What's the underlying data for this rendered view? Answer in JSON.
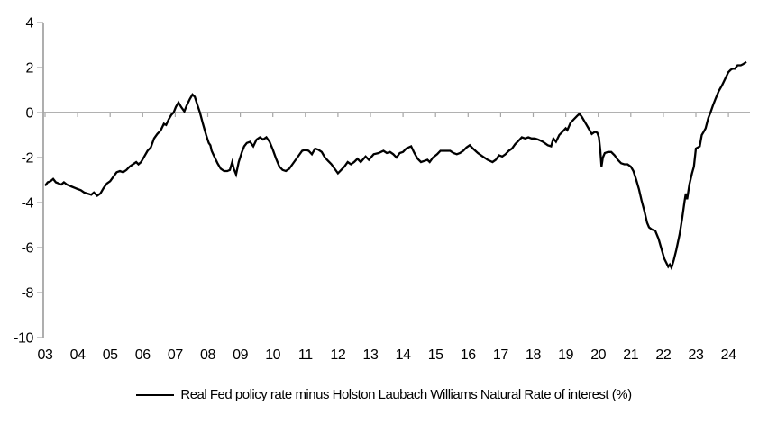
{
  "chart_data": {
    "type": "line",
    "title": "",
    "xlabel": "",
    "ylabel": "",
    "ylim": [
      -10,
      4
    ],
    "y_ticks": [
      4,
      2,
      0,
      -2,
      -4,
      -6,
      -8,
      -10
    ],
    "x_tick_labels": [
      "03",
      "04",
      "05",
      "06",
      "07",
      "08",
      "09",
      "10",
      "11",
      "12",
      "13",
      "14",
      "15",
      "16",
      "17",
      "18",
      "19",
      "20",
      "21",
      "22",
      "23",
      "24"
    ],
    "x_start_year": 3,
    "grid": "zero-line-only",
    "legend_position": "bottom",
    "axis_color": "#a6a6a6",
    "background_color": "#ffffff",
    "series": [
      {
        "name": "Real Fed policy rate minus Holston Laubach Williams Natural Rate of interest (%)",
        "color": "#000000",
        "points": [
          [
            3.0,
            -3.25
          ],
          [
            3.08,
            -3.1
          ],
          [
            3.17,
            -3.05
          ],
          [
            3.25,
            -2.95
          ],
          [
            3.33,
            -3.1
          ],
          [
            3.42,
            -3.15
          ],
          [
            3.5,
            -3.2
          ],
          [
            3.58,
            -3.1
          ],
          [
            3.67,
            -3.2
          ],
          [
            3.75,
            -3.25
          ],
          [
            3.83,
            -3.3
          ],
          [
            3.92,
            -3.35
          ],
          [
            4.0,
            -3.4
          ],
          [
            4.1,
            -3.45
          ],
          [
            4.2,
            -3.55
          ],
          [
            4.3,
            -3.6
          ],
          [
            4.42,
            -3.65
          ],
          [
            4.5,
            -3.55
          ],
          [
            4.6,
            -3.7
          ],
          [
            4.7,
            -3.6
          ],
          [
            4.8,
            -3.35
          ],
          [
            4.9,
            -3.15
          ],
          [
            5.0,
            -3.05
          ],
          [
            5.1,
            -2.85
          ],
          [
            5.2,
            -2.65
          ],
          [
            5.3,
            -2.6
          ],
          [
            5.4,
            -2.65
          ],
          [
            5.5,
            -2.55
          ],
          [
            5.6,
            -2.4
          ],
          [
            5.7,
            -2.3
          ],
          [
            5.8,
            -2.2
          ],
          [
            5.87,
            -2.3
          ],
          [
            5.95,
            -2.2
          ],
          [
            6.05,
            -1.95
          ],
          [
            6.15,
            -1.7
          ],
          [
            6.25,
            -1.55
          ],
          [
            6.35,
            -1.15
          ],
          [
            6.45,
            -0.95
          ],
          [
            6.55,
            -0.8
          ],
          [
            6.65,
            -0.5
          ],
          [
            6.72,
            -0.55
          ],
          [
            6.8,
            -0.3
          ],
          [
            6.88,
            -0.1
          ],
          [
            6.95,
            0.0
          ],
          [
            7.02,
            0.25
          ],
          [
            7.1,
            0.45
          ],
          [
            7.18,
            0.25
          ],
          [
            7.28,
            0.05
          ],
          [
            7.35,
            0.3
          ],
          [
            7.45,
            0.6
          ],
          [
            7.53,
            0.8
          ],
          [
            7.6,
            0.7
          ],
          [
            7.68,
            0.35
          ],
          [
            7.76,
            0.0
          ],
          [
            7.85,
            -0.5
          ],
          [
            7.95,
            -1.0
          ],
          [
            8.03,
            -1.35
          ],
          [
            8.08,
            -1.45
          ],
          [
            8.12,
            -1.7
          ],
          [
            8.2,
            -1.95
          ],
          [
            8.3,
            -2.25
          ],
          [
            8.4,
            -2.5
          ],
          [
            8.5,
            -2.6
          ],
          [
            8.6,
            -2.6
          ],
          [
            8.68,
            -2.55
          ],
          [
            8.75,
            -2.2
          ],
          [
            8.8,
            -2.5
          ],
          [
            8.87,
            -2.75
          ],
          [
            8.95,
            -2.2
          ],
          [
            9.05,
            -1.75
          ],
          [
            9.12,
            -1.5
          ],
          [
            9.2,
            -1.35
          ],
          [
            9.3,
            -1.3
          ],
          [
            9.4,
            -1.5
          ],
          [
            9.5,
            -1.2
          ],
          [
            9.6,
            -1.1
          ],
          [
            9.7,
            -1.2
          ],
          [
            9.8,
            -1.1
          ],
          [
            9.9,
            -1.3
          ],
          [
            10.0,
            -1.65
          ],
          [
            10.1,
            -2.05
          ],
          [
            10.2,
            -2.4
          ],
          [
            10.3,
            -2.55
          ],
          [
            10.4,
            -2.6
          ],
          [
            10.5,
            -2.5
          ],
          [
            10.6,
            -2.3
          ],
          [
            10.7,
            -2.1
          ],
          [
            10.8,
            -1.9
          ],
          [
            10.9,
            -1.7
          ],
          [
            11.0,
            -1.65
          ],
          [
            11.1,
            -1.7
          ],
          [
            11.2,
            -1.85
          ],
          [
            11.3,
            -1.6
          ],
          [
            11.4,
            -1.65
          ],
          [
            11.5,
            -1.75
          ],
          [
            11.6,
            -2.0
          ],
          [
            11.7,
            -2.15
          ],
          [
            11.8,
            -2.3
          ],
          [
            11.9,
            -2.5
          ],
          [
            12.0,
            -2.7
          ],
          [
            12.1,
            -2.55
          ],
          [
            12.2,
            -2.4
          ],
          [
            12.3,
            -2.2
          ],
          [
            12.4,
            -2.3
          ],
          [
            12.5,
            -2.2
          ],
          [
            12.6,
            -2.05
          ],
          [
            12.7,
            -2.2
          ],
          [
            12.85,
            -1.95
          ],
          [
            12.95,
            -2.1
          ],
          [
            13.1,
            -1.85
          ],
          [
            13.25,
            -1.8
          ],
          [
            13.4,
            -1.7
          ],
          [
            13.5,
            -1.8
          ],
          [
            13.6,
            -1.75
          ],
          [
            13.7,
            -1.85
          ],
          [
            13.8,
            -2.0
          ],
          [
            13.9,
            -1.8
          ],
          [
            14.0,
            -1.75
          ],
          [
            14.1,
            -1.6
          ],
          [
            14.25,
            -1.5
          ],
          [
            14.35,
            -1.8
          ],
          [
            14.45,
            -2.05
          ],
          [
            14.55,
            -2.2
          ],
          [
            14.65,
            -2.15
          ],
          [
            14.75,
            -2.1
          ],
          [
            14.82,
            -2.2
          ],
          [
            14.92,
            -2.0
          ],
          [
            15.05,
            -1.85
          ],
          [
            15.15,
            -1.7
          ],
          [
            15.3,
            -1.7
          ],
          [
            15.45,
            -1.7
          ],
          [
            15.55,
            -1.8
          ],
          [
            15.65,
            -1.85
          ],
          [
            15.75,
            -1.8
          ],
          [
            15.85,
            -1.7
          ],
          [
            15.95,
            -1.55
          ],
          [
            16.05,
            -1.45
          ],
          [
            16.15,
            -1.6
          ],
          [
            16.3,
            -1.8
          ],
          [
            16.45,
            -1.95
          ],
          [
            16.6,
            -2.1
          ],
          [
            16.75,
            -2.2
          ],
          [
            16.85,
            -2.1
          ],
          [
            16.95,
            -1.9
          ],
          [
            17.05,
            -1.95
          ],
          [
            17.15,
            -1.85
          ],
          [
            17.25,
            -1.7
          ],
          [
            17.35,
            -1.6
          ],
          [
            17.45,
            -1.4
          ],
          [
            17.55,
            -1.25
          ],
          [
            17.65,
            -1.1
          ],
          [
            17.75,
            -1.15
          ],
          [
            17.85,
            -1.1
          ],
          [
            17.95,
            -1.15
          ],
          [
            18.05,
            -1.15
          ],
          [
            18.15,
            -1.2
          ],
          [
            18.3,
            -1.3
          ],
          [
            18.45,
            -1.45
          ],
          [
            18.55,
            -1.5
          ],
          [
            18.62,
            -1.15
          ],
          [
            18.7,
            -1.3
          ],
          [
            18.8,
            -1.0
          ],
          [
            18.9,
            -0.85
          ],
          [
            19.0,
            -0.7
          ],
          [
            19.05,
            -0.78
          ],
          [
            19.15,
            -0.45
          ],
          [
            19.25,
            -0.3
          ],
          [
            19.35,
            -0.15
          ],
          [
            19.42,
            -0.05
          ],
          [
            19.5,
            -0.2
          ],
          [
            19.6,
            -0.45
          ],
          [
            19.7,
            -0.7
          ],
          [
            19.8,
            -0.95
          ],
          [
            19.9,
            -0.85
          ],
          [
            19.97,
            -0.9
          ],
          [
            20.02,
            -1.1
          ],
          [
            20.06,
            -1.65
          ],
          [
            20.1,
            -2.4
          ],
          [
            20.14,
            -2.0
          ],
          [
            20.2,
            -1.8
          ],
          [
            20.3,
            -1.75
          ],
          [
            20.4,
            -1.75
          ],
          [
            20.5,
            -1.9
          ],
          [
            20.6,
            -2.1
          ],
          [
            20.7,
            -2.25
          ],
          [
            20.8,
            -2.3
          ],
          [
            20.9,
            -2.3
          ],
          [
            21.0,
            -2.4
          ],
          [
            21.08,
            -2.6
          ],
          [
            21.17,
            -3.0
          ],
          [
            21.25,
            -3.4
          ],
          [
            21.33,
            -3.9
          ],
          [
            21.42,
            -4.4
          ],
          [
            21.5,
            -4.9
          ],
          [
            21.56,
            -5.1
          ],
          [
            21.65,
            -5.2
          ],
          [
            21.75,
            -5.25
          ],
          [
            21.85,
            -5.6
          ],
          [
            21.95,
            -6.1
          ],
          [
            22.03,
            -6.5
          ],
          [
            22.1,
            -6.7
          ],
          [
            22.15,
            -6.85
          ],
          [
            22.2,
            -6.75
          ],
          [
            22.25,
            -6.9
          ],
          [
            22.32,
            -6.55
          ],
          [
            22.4,
            -6.1
          ],
          [
            22.5,
            -5.4
          ],
          [
            22.58,
            -4.7
          ],
          [
            22.65,
            -3.95
          ],
          [
            22.69,
            -3.6
          ],
          [
            22.73,
            -3.85
          ],
          [
            22.8,
            -3.2
          ],
          [
            22.88,
            -2.7
          ],
          [
            22.94,
            -2.4
          ],
          [
            23.0,
            -1.6
          ],
          [
            23.06,
            -1.55
          ],
          [
            23.12,
            -1.5
          ],
          [
            23.18,
            -1.0
          ],
          [
            23.24,
            -0.85
          ],
          [
            23.3,
            -0.7
          ],
          [
            23.38,
            -0.25
          ],
          [
            23.45,
            0.0
          ],
          [
            23.52,
            0.3
          ],
          [
            23.6,
            0.6
          ],
          [
            23.7,
            0.95
          ],
          [
            23.8,
            1.2
          ],
          [
            23.9,
            1.5
          ],
          [
            24.0,
            1.8
          ],
          [
            24.07,
            1.9
          ],
          [
            24.13,
            1.95
          ],
          [
            24.2,
            1.95
          ],
          [
            24.28,
            2.1
          ],
          [
            24.38,
            2.1
          ],
          [
            24.45,
            2.15
          ],
          [
            24.55,
            2.25
          ]
        ]
      }
    ]
  }
}
